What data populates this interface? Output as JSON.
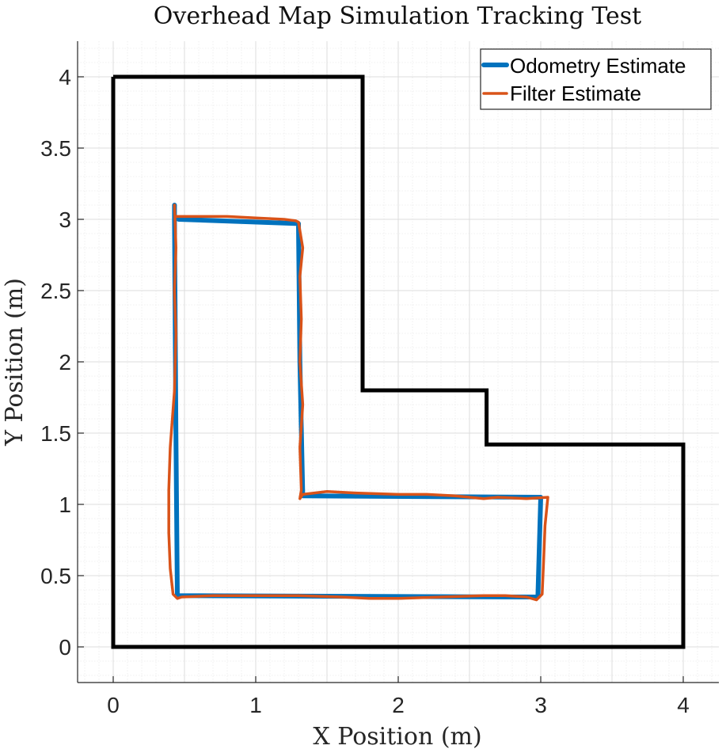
{
  "chart_data": {
    "type": "line",
    "title": "Overhead Map Simulation Tracking Test",
    "xlabel": "X Position (m)",
    "ylabel": "Y Position (m)",
    "xlim": [
      -0.25,
      4.25
    ],
    "ylim": [
      -0.25,
      4.25
    ],
    "xticks": [
      0,
      1,
      2,
      3,
      4
    ],
    "yticks": [
      0,
      0.5,
      1,
      1.5,
      2,
      2.5,
      3,
      3.5,
      4
    ],
    "xtick_labels": [
      "0",
      "1",
      "2",
      "3",
      "4"
    ],
    "ytick_labels": [
      "0",
      "0.5",
      "1",
      "1.5",
      "2",
      "2.5",
      "3",
      "3.5",
      "4"
    ],
    "grid": true,
    "minor_grid": true,
    "legend_position": "top-right",
    "map_boundary": {
      "color": "#000000",
      "x": [
        0,
        1.75,
        1.75,
        2.62,
        2.62,
        4,
        4,
        0,
        0
      ],
      "y": [
        4,
        4,
        1.8,
        1.8,
        1.42,
        1.42,
        0,
        0,
        4
      ]
    },
    "series": [
      {
        "name": "Odometry Estimate",
        "color": "#0072BD",
        "x": [
          0.43,
          0.43,
          0.44,
          0.45,
          2.98,
          2.99,
          3.0,
          1.33,
          1.31,
          1.3,
          0.46,
          0.44
        ],
        "y": [
          3.1,
          3.0,
          1.5,
          0.36,
          0.35,
          0.7,
          1.05,
          1.06,
          2.0,
          2.97,
          3.0,
          3.01
        ]
      },
      {
        "name": "Filter Estimate",
        "color": "#D95319",
        "x": [
          0.43,
          0.44,
          0.43,
          0.44,
          0.43,
          0.4,
          0.39,
          0.39,
          0.4,
          0.42,
          0.45,
          0.48,
          0.7,
          1.0,
          1.3,
          1.6,
          1.8,
          2.0,
          2.3,
          2.6,
          2.75,
          2.9,
          2.97,
          3.01,
          3.02,
          3.03,
          3.05,
          2.9,
          2.7,
          2.6,
          2.4,
          2.2,
          2.0,
          1.7,
          1.5,
          1.33,
          1.31,
          1.32,
          1.31,
          1.33,
          1.31,
          1.32,
          1.31,
          1.33,
          1.3,
          1.28,
          1.2,
          1.0,
          0.8,
          0.6,
          0.48,
          0.45,
          0.44
        ],
        "y": [
          3.1,
          2.8,
          2.5,
          2.2,
          1.8,
          1.4,
          1.1,
          0.8,
          0.55,
          0.37,
          0.34,
          0.35,
          0.36,
          0.36,
          0.36,
          0.35,
          0.34,
          0.34,
          0.35,
          0.36,
          0.36,
          0.35,
          0.33,
          0.37,
          0.6,
          0.85,
          1.05,
          1.04,
          1.05,
          1.04,
          1.06,
          1.07,
          1.07,
          1.08,
          1.09,
          1.07,
          1.04,
          1.1,
          1.4,
          1.7,
          2.0,
          2.3,
          2.6,
          2.8,
          2.98,
          2.99,
          3.0,
          3.01,
          3.02,
          3.02,
          3.02,
          3.02,
          3.02
        ]
      }
    ]
  }
}
